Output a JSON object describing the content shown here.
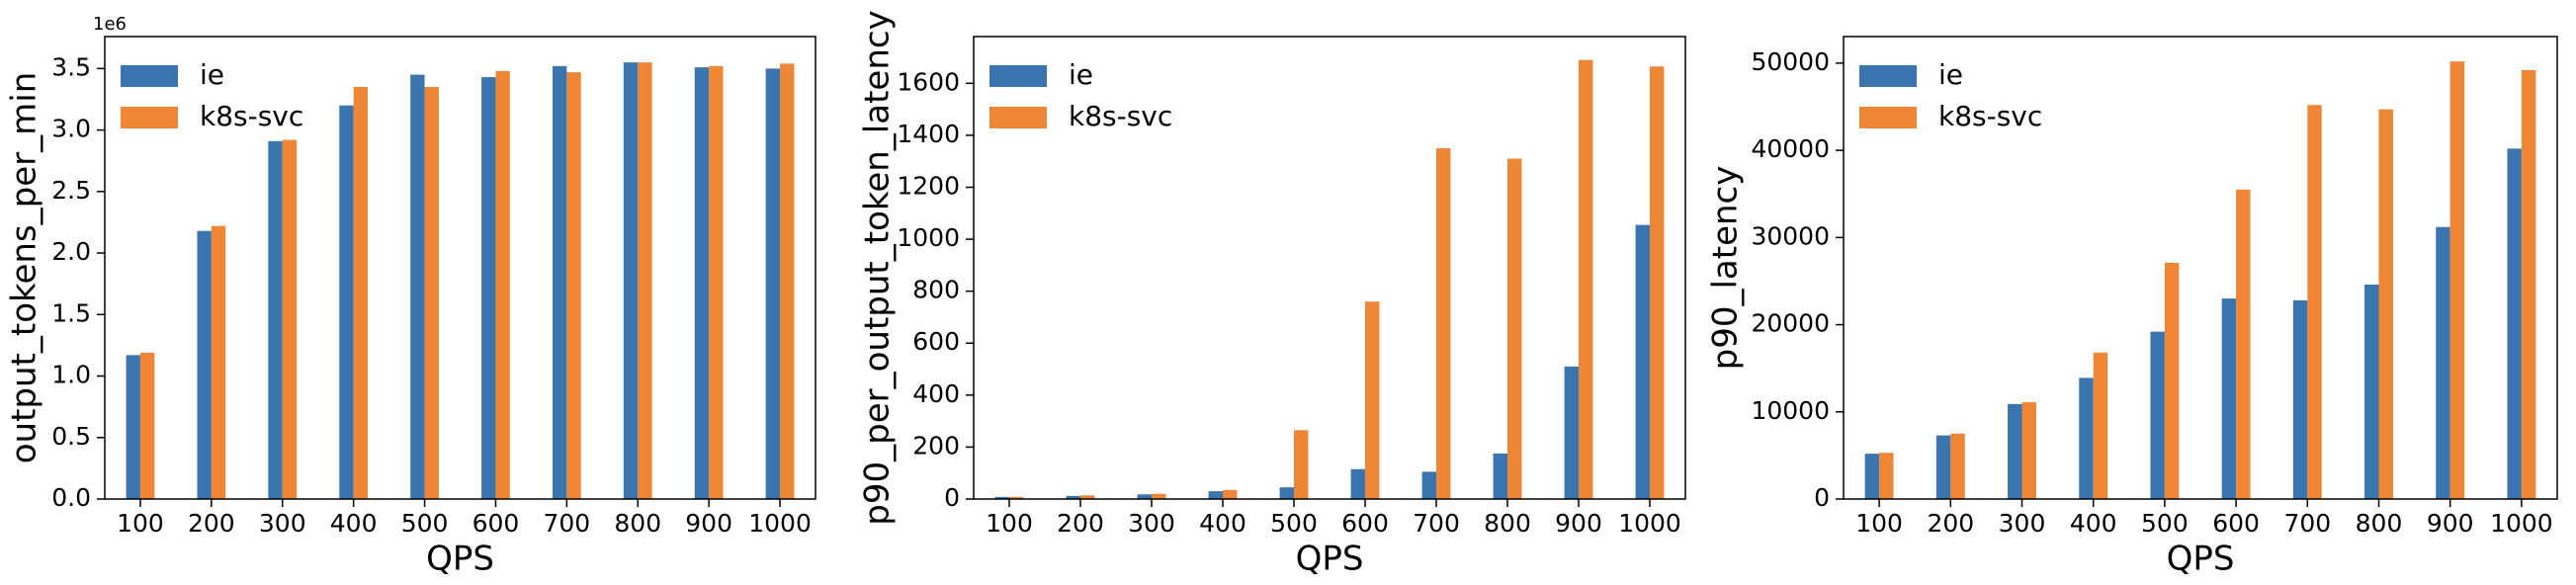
{
  "chart_data": [
    {
      "type": "bar",
      "xlabel": "QPS",
      "ylabel": "output_tokens_per_min",
      "offset_text": "1e6",
      "categories": [
        "100",
        "200",
        "300",
        "400",
        "500",
        "600",
        "700",
        "800",
        "900",
        "1000"
      ],
      "series": [
        {
          "name": "ie",
          "color": "#3b75af",
          "values": [
            1.17,
            2.18,
            2.91,
            3.2,
            3.45,
            3.43,
            3.52,
            3.55,
            3.51,
            3.5
          ]
        },
        {
          "name": "k8s-svc",
          "color": "#ef8636",
          "values": [
            1.19,
            2.22,
            2.92,
            3.35,
            3.35,
            3.48,
            3.47,
            3.55,
            3.52,
            3.54
          ]
        }
      ],
      "ylim": [
        0,
        3.76
      ],
      "yticks": [
        {
          "value": 0,
          "label": "0.0"
        },
        {
          "value": 0.5,
          "label": "0.5"
        },
        {
          "value": 1,
          "label": "1.0"
        },
        {
          "value": 1.5,
          "label": "1.5"
        },
        {
          "value": 2,
          "label": "2.0"
        },
        {
          "value": 2.5,
          "label": "2.5"
        },
        {
          "value": 3,
          "label": "3.0"
        },
        {
          "value": 3.5,
          "label": "3.5"
        }
      ],
      "legend": "upper left"
    },
    {
      "type": "bar",
      "xlabel": "QPS",
      "ylabel": "p90_per_output_token_latency",
      "categories": [
        "100",
        "200",
        "300",
        "400",
        "500",
        "600",
        "700",
        "800",
        "900",
        "1000"
      ],
      "series": [
        {
          "name": "ie",
          "color": "#3b75af",
          "values": [
            8,
            12,
            18,
            30,
            45,
            115,
            105,
            175,
            510,
            1055
          ]
        },
        {
          "name": "k8s-svc",
          "color": "#ef8636",
          "values": [
            8,
            14,
            20,
            35,
            265,
            760,
            1350,
            1310,
            1690,
            1665
          ]
        }
      ],
      "ylim": [
        0,
        1780
      ],
      "yticks": [
        0,
        200,
        400,
        600,
        800,
        1000,
        1200,
        1400,
        1600
      ],
      "legend": "upper left"
    },
    {
      "type": "bar",
      "xlabel": "QPS",
      "ylabel": "p90_latency",
      "categories": [
        "100",
        "200",
        "300",
        "400",
        "500",
        "600",
        "700",
        "800",
        "900",
        "1000"
      ],
      "series": [
        {
          "name": "ie",
          "color": "#3b75af",
          "values": [
            5200,
            7300,
            10900,
            13900,
            19200,
            23000,
            22800,
            24600,
            31200,
            40200
          ]
        },
        {
          "name": "k8s-svc",
          "color": "#ef8636",
          "values": [
            5300,
            7500,
            11100,
            16800,
            27100,
            35500,
            45200,
            44700,
            50200,
            49200
          ]
        }
      ],
      "ylim": [
        0,
        53050
      ],
      "yticks": [
        0,
        10000,
        20000,
        30000,
        40000,
        50000
      ],
      "legend": "upper left"
    }
  ]
}
